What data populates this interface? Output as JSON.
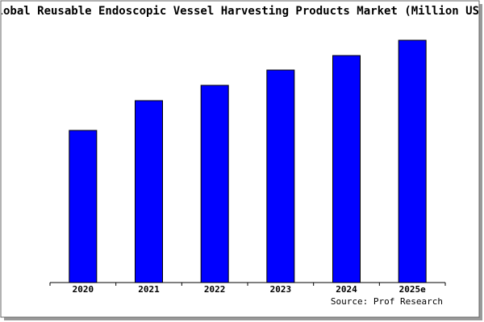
{
  "chart_data": {
    "type": "bar",
    "title": "Global Reusable Endoscopic Vessel Harvesting Products Market (Million USD)",
    "categories": [
      "2020",
      "2021",
      "2022",
      "2023",
      "2024",
      "2025e"
    ],
    "values": [
      189,
      226,
      245,
      264,
      282,
      301
    ],
    "color": "#0000ff",
    "source": "Source: Prof Research"
  }
}
